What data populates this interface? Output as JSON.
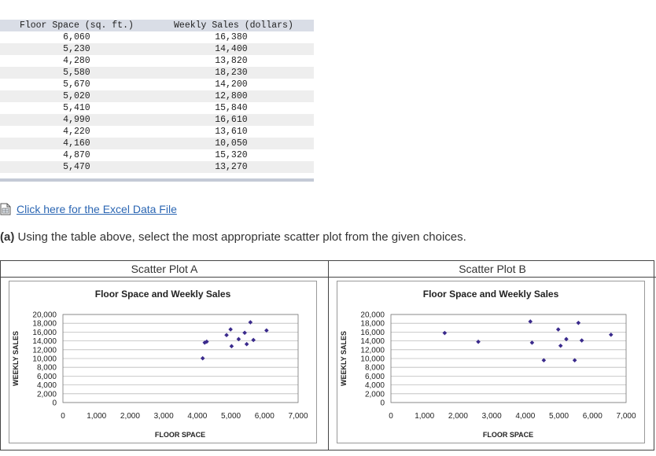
{
  "table": {
    "headers": [
      "Floor Space (sq. ft.)",
      "Weekly Sales (dollars)"
    ],
    "rows": [
      [
        "6,060",
        "16,380"
      ],
      [
        "5,230",
        "14,400"
      ],
      [
        "4,280",
        "13,820"
      ],
      [
        "5,580",
        "18,230"
      ],
      [
        "5,670",
        "14,200"
      ],
      [
        "5,020",
        "12,800"
      ],
      [
        "5,410",
        "15,840"
      ],
      [
        "4,990",
        "16,610"
      ],
      [
        "4,220",
        "13,610"
      ],
      [
        "4,160",
        "10,050"
      ],
      [
        "4,870",
        "15,320"
      ],
      [
        "5,470",
        "13,270"
      ]
    ]
  },
  "link": {
    "label": " Click here for the Excel Data File",
    "icon": "excel-file-icon"
  },
  "question": {
    "prefix": "(a)",
    "text": " Using the table above, select the most appropriate scatter plot from the given choices."
  },
  "colors": {
    "marker": "#3a2a8c",
    "link": "#2b66b3",
    "table_header": "#d9dde6"
  },
  "chart_data": [
    {
      "type": "scatter",
      "panel_label": "Scatter Plot A",
      "title": "Floor Space and Weekly Sales",
      "xlabel": "FLOOR SPACE",
      "ylabel": "WEEKLY SALES",
      "xlim": [
        0,
        7000
      ],
      "ylim": [
        0,
        20000
      ],
      "xticks": [
        "0",
        "1,000",
        "2,000",
        "3,000",
        "4,000",
        "5,000",
        "6,000",
        "7,000"
      ],
      "yticks": [
        "0",
        "2,000",
        "4,000",
        "6,000",
        "8,000",
        "10,000",
        "12,000",
        "14,000",
        "16,000",
        "18,000",
        "20,000"
      ],
      "grid": true,
      "points": [
        [
          6060,
          16380
        ],
        [
          5230,
          14400
        ],
        [
          4280,
          13820
        ],
        [
          5580,
          18230
        ],
        [
          5670,
          14200
        ],
        [
          5020,
          12800
        ],
        [
          5410,
          15840
        ],
        [
          4990,
          16610
        ],
        [
          4220,
          13610
        ],
        [
          4160,
          10050
        ],
        [
          4870,
          15320
        ],
        [
          5470,
          13270
        ]
      ]
    },
    {
      "type": "scatter",
      "panel_label": "Scatter Plot B",
      "title": "Floor Space and Weekly Sales",
      "xlabel": "FLOOR SPACE",
      "ylabel": "WEEKLY SALES",
      "xlim": [
        0,
        7000
      ],
      "ylim": [
        0,
        20000
      ],
      "xticks": [
        "0",
        "1,000",
        "2,000",
        "3,000",
        "4,000",
        "5,000",
        "6,000",
        "7,000"
      ],
      "yticks": [
        "0",
        "2,000",
        "4,000",
        "6,000",
        "8,000",
        "10,000",
        "12,000",
        "14,000",
        "16,000",
        "18,000",
        "20,000"
      ],
      "grid": true,
      "points": [
        [
          1600,
          15800
        ],
        [
          2600,
          13800
        ],
        [
          4150,
          18400
        ],
        [
          4200,
          13600
        ],
        [
          4550,
          9600
        ],
        [
          4980,
          16600
        ],
        [
          5050,
          12900
        ],
        [
          5220,
          14400
        ],
        [
          5470,
          9600
        ],
        [
          5580,
          18100
        ],
        [
          5680,
          14100
        ],
        [
          6550,
          15400
        ]
      ]
    }
  ]
}
